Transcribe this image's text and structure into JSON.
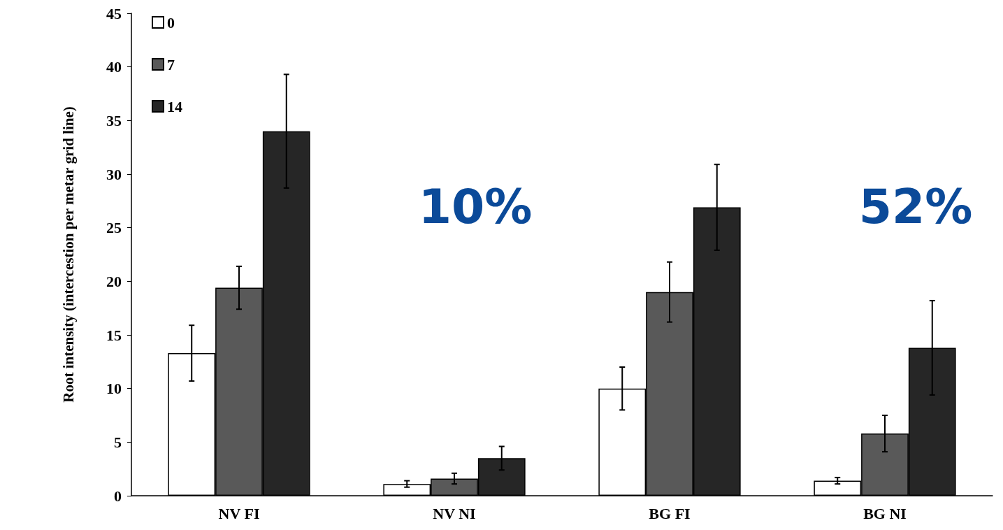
{
  "chart_data": {
    "type": "bar",
    "ylabel": "Root intensity (intercestion per metar grid line)",
    "categories": [
      "NV FI",
      "NV NI",
      "BG FI",
      "BG NI"
    ],
    "series": [
      {
        "name": "0",
        "color": "#ffffff",
        "values": [
          13.3,
          1.1,
          10.0,
          1.4
        ],
        "errors": [
          2.6,
          0.3,
          2.0,
          0.3
        ]
      },
      {
        "name": "7",
        "color": "#595959",
        "values": [
          19.4,
          1.6,
          19.0,
          5.8
        ],
        "errors": [
          2.0,
          0.5,
          2.8,
          1.7
        ]
      },
      {
        "name": "14",
        "color": "#262626",
        "values": [
          34.0,
          3.5,
          26.9,
          13.8
        ],
        "errors": [
          5.3,
          1.1,
          4.0,
          4.4
        ]
      }
    ],
    "ylim": [
      0,
      45
    ],
    "yticks": [
      0,
      5,
      10,
      15,
      20,
      25,
      30,
      35,
      40,
      45
    ],
    "grid": false,
    "legend": "top left",
    "annotations": [
      "10%",
      "52%"
    ]
  }
}
